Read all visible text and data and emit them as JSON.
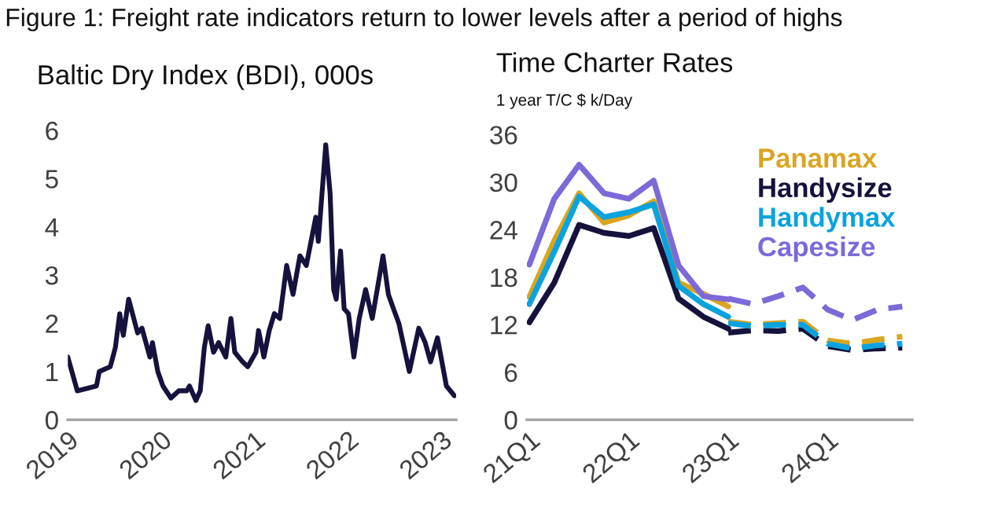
{
  "chart_data": [
    {
      "type": "line",
      "title": "Baltic Dry Index (BDI), 000s",
      "annotations": [
        "Figure 1: Freight rate indicators return to lower levels after a period of highs"
      ],
      "x": [
        "2019-01-01",
        "2019-02-07",
        "2019-04-23",
        "2019-05-04",
        "2019-06-16",
        "2019-07-06",
        "2019-07-23",
        "2019-08-06",
        "2019-08-27",
        "2019-10-01",
        "2019-10-18",
        "2019-11-18",
        "2019-11-28",
        "2019-12-19",
        "2020-01-08",
        "2020-02-08",
        "2020-03-10",
        "2020-04-10",
        "2020-04-21",
        "2020-05-16",
        "2020-06-02",
        "2020-06-18",
        "2020-07-03",
        "2020-07-24",
        "2020-08-13",
        "2020-09-10",
        "2020-09-30",
        "2020-10-15",
        "2020-11-15",
        "2020-12-05",
        "2021-01-06",
        "2021-01-16",
        "2021-02-06",
        "2021-02-27",
        "2021-03-19",
        "2021-04-09",
        "2021-05-06",
        "2021-05-31",
        "2021-06-27",
        "2021-07-22",
        "2021-08-28",
        "2021-09-07",
        "2021-10-06",
        "2021-10-23",
        "2021-11-06",
        "2021-11-16",
        "2021-12-03",
        "2021-12-17",
        "2022-01-03",
        "2022-01-24",
        "2022-02-14",
        "2022-03-11",
        "2022-04-06",
        "2022-05-18",
        "2022-06-08",
        "2022-06-28",
        "2022-07-19",
        "2022-08-29",
        "2022-10-05",
        "2022-10-30",
        "2022-11-20",
        "2022-12-17",
        "2023-01-21",
        "2023-02-21"
      ],
      "series": [
        {
          "color": "#15123d",
          "values": [
            1.3,
            0.6,
            0.7,
            1.0,
            1.1,
            1.5,
            2.2,
            1.75,
            2.5,
            1.8,
            1.9,
            1.3,
            1.6,
            1.0,
            0.7,
            0.45,
            0.6,
            0.6,
            0.7,
            0.4,
            0.6,
            1.5,
            1.95,
            1.4,
            1.6,
            1.3,
            2.1,
            1.4,
            1.2,
            1.1,
            1.4,
            1.85,
            1.3,
            1.85,
            2.2,
            2.1,
            3.2,
            2.6,
            3.4,
            3.2,
            4.2,
            3.7,
            5.7,
            4.7,
            2.7,
            2.5,
            3.5,
            2.3,
            2.2,
            1.3,
            2.1,
            2.7,
            2.1,
            3.4,
            2.6,
            2.3,
            2.0,
            1.0,
            1.9,
            1.6,
            1.2,
            1.7,
            0.7,
            0.5
          ]
        }
      ],
      "xlim": [
        "2019-01-01",
        "2023-02-28"
      ],
      "xticks": [
        "2019",
        "2020",
        "2021",
        "2022",
        "2023"
      ],
      "ylim": [
        0,
        6
      ],
      "yticks": [
        0,
        1,
        2,
        3,
        4,
        5,
        6
      ],
      "grid": false,
      "legend": false
    },
    {
      "type": "line",
      "title": "Time Charter Rates",
      "subtitle": "1 year T/C $ k/Day",
      "categories": [
        "21Q1",
        null,
        null,
        null,
        "22Q1",
        null,
        null,
        null,
        "23Q1",
        null,
        null,
        null,
        "24Q1",
        null,
        null,
        null
      ],
      "series": [
        {
          "name": "Panamax",
          "color": "#d9a521",
          "line_style": "solid",
          "values": [
            15.5,
            22.6,
            28.6,
            24.9,
            25.8,
            27.6,
            17.3,
            15.9,
            14.3,
            null,
            null,
            null,
            null,
            null,
            null,
            null
          ]
        },
        {
          "name": "Handysize",
          "color": "#15123d",
          "line_style": "solid",
          "values": [
            12.3,
            17.3,
            24.6,
            23.6,
            23.2,
            24.2,
            15.3,
            13.0,
            11.5,
            null,
            null,
            null,
            null,
            null,
            null,
            null
          ]
        },
        {
          "name": "Handymax",
          "color": "#0ba3dd",
          "line_style": "solid",
          "values": [
            14.6,
            21.2,
            28.2,
            25.6,
            26.2,
            27.2,
            16.9,
            14.6,
            13.0,
            null,
            null,
            null,
            null,
            null,
            null,
            null
          ]
        },
        {
          "name": "Capesize",
          "color": "#7d69d8",
          "line_style": "solid",
          "values": [
            19.6,
            27.9,
            32.2,
            28.6,
            27.9,
            30.2,
            19.5,
            15.6,
            15.2,
            null,
            null,
            null,
            null,
            null,
            null,
            null
          ]
        },
        {
          "color": "#d9a521",
          "line_style": "dashed",
          "values": [
            null,
            null,
            null,
            null,
            null,
            null,
            null,
            null,
            12.4,
            12.0,
            12.2,
            12.4,
            10.0,
            9.6,
            10.1,
            10.5
          ]
        },
        {
          "color": "#15123d",
          "line_style": "dashed",
          "values": [
            null,
            null,
            null,
            null,
            null,
            null,
            null,
            null,
            11.0,
            11.3,
            11.2,
            11.5,
            9.3,
            8.8,
            9.0,
            9.1
          ]
        },
        {
          "color": "#0ba3dd",
          "line_style": "dashed",
          "values": [
            null,
            null,
            null,
            null,
            null,
            null,
            null,
            null,
            12.2,
            11.8,
            12.0,
            12.0,
            9.6,
            9.0,
            9.4,
            9.6
          ]
        },
        {
          "color": "#7d69d8",
          "line_style": "dashed",
          "values": [
            null,
            null,
            null,
            null,
            null,
            null,
            null,
            null,
            15.3,
            14.6,
            15.6,
            16.7,
            13.9,
            12.6,
            13.9,
            14.3
          ]
        }
      ],
      "ylim": [
        0,
        36
      ],
      "yticks": [
        0,
        6,
        12,
        18,
        24,
        30,
        36
      ],
      "grid": false,
      "legend": "top right"
    }
  ]
}
